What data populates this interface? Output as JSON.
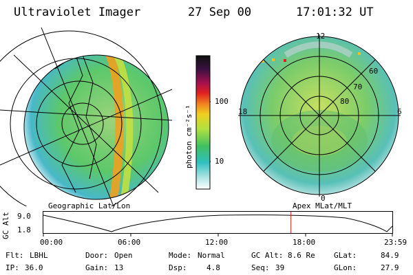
{
  "header": {
    "instrument": "Ultraviolet Imager",
    "date": "27 Sep 00",
    "time": "17:01:32 UT"
  },
  "left_panel": {
    "label": "Geographic Lat/Lon"
  },
  "colorbar": {
    "unit": "photon cm⁻²s⁻¹",
    "ticks": [
      "100",
      "10"
    ]
  },
  "right_panel": {
    "label": "Apex MLat/MLT",
    "mlt_labels": [
      "12",
      "18",
      "6",
      "0"
    ],
    "lat_labels": [
      "60",
      "70",
      "80"
    ]
  },
  "altitude_plot": {
    "ylabel": "GC Alt",
    "yticks": [
      "9.0",
      "1.8"
    ],
    "xticks": [
      "00:00",
      "06:00",
      "12:00",
      "18:00",
      "23:59"
    ],
    "marker_time_hours": 17.025
  },
  "info": {
    "flt_label": "Flt:",
    "flt_value": "LBHL",
    "ip_label": "IP:",
    "ip_value": "36.0",
    "door_label": "Door:",
    "door_value": "Open",
    "gain_label": "Gain:",
    "gain_value": "13",
    "mode_label": "Mode:",
    "mode_value": "Normal",
    "dsp_label": "Dsp:",
    "dsp_value": "4.8",
    "gcalt_label": "GC Alt:",
    "gcalt_value": "8.6 Re",
    "seq_label": "Seq:",
    "seq_value": "39",
    "glat_label": "GLat:",
    "glat_value": "84.9",
    "glon_label": "GLon:",
    "glon_value": "27.9"
  },
  "colors": {
    "marker": "#cc2222",
    "ink": "#000000"
  }
}
